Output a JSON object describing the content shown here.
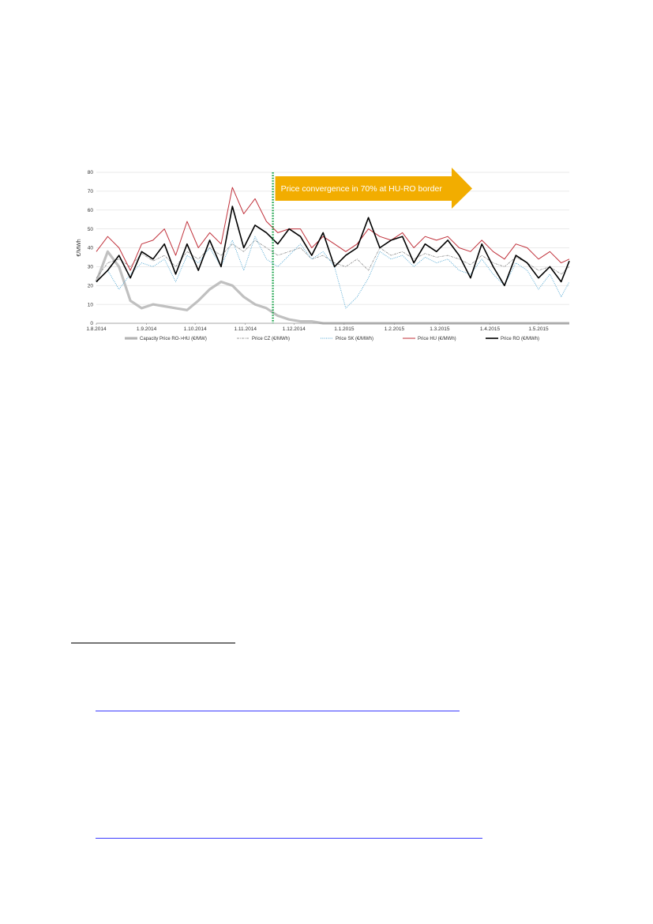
{
  "colors": {
    "capacity": "#b5b5b5",
    "cz": "#7f7f7f",
    "sk": "#4ea6d2",
    "hu": "#c0303a",
    "ro": "#000000",
    "convergence_line": "#1aa34a",
    "banner": "#f2ad00",
    "grid": "#e3e3e3",
    "link": "#3b3bff"
  },
  "annotation": {
    "text": "Price convergence in 70% at HU-RO border",
    "at_date": "2014-11-18"
  },
  "chart_data": {
    "type": "line",
    "title": "",
    "xlabel": "",
    "ylabel": "€/MWh",
    "ylim": [
      0,
      80
    ],
    "yticks": [
      0,
      10,
      20,
      30,
      40,
      50,
      60,
      70,
      80
    ],
    "xlim": [
      "2014-08-01",
      "2015-05-20"
    ],
    "xticks": [
      "1.8.2014",
      "1.9.2014",
      "1.10.2014",
      "1.11.2014",
      "1.12.2014",
      "1.1.2015",
      "1.2.2015",
      "1.3.2015",
      "1.4.2015",
      "1.5.2015"
    ],
    "grid": true,
    "legend_position": "bottom",
    "x": [
      "2014-08-01",
      "2014-08-08",
      "2014-08-15",
      "2014-08-22",
      "2014-08-29",
      "2014-09-05",
      "2014-09-12",
      "2014-09-19",
      "2014-09-26",
      "2014-10-03",
      "2014-10-10",
      "2014-10-17",
      "2014-10-24",
      "2014-10-31",
      "2014-11-07",
      "2014-11-14",
      "2014-11-21",
      "2014-11-28",
      "2014-12-05",
      "2014-12-12",
      "2014-12-19",
      "2014-12-26",
      "2015-01-02",
      "2015-01-09",
      "2015-01-16",
      "2015-01-23",
      "2015-01-30",
      "2015-02-06",
      "2015-02-13",
      "2015-02-20",
      "2015-02-27",
      "2015-03-06",
      "2015-03-13",
      "2015-03-20",
      "2015-03-27",
      "2015-04-03",
      "2015-04-10",
      "2015-04-17",
      "2015-04-24",
      "2015-05-01",
      "2015-05-08",
      "2015-05-15",
      "2015-05-20"
    ],
    "series": [
      {
        "name": "Capacity Price RO->HU (€/MW)",
        "key": "capacity",
        "style": "band",
        "values": [
          22,
          38,
          30,
          12,
          8,
          10,
          9,
          8,
          7,
          12,
          18,
          22,
          20,
          14,
          10,
          8,
          4,
          2,
          1,
          1,
          0,
          0,
          0,
          0,
          0,
          0,
          0,
          0,
          0,
          0,
          0,
          0,
          0,
          0,
          0,
          0,
          0,
          0,
          0,
          0,
          0,
          0,
          0
        ]
      },
      {
        "name": "Price CZ (€/MWh)",
        "key": "cz",
        "style": "dashdot",
        "values": [
          24,
          32,
          34,
          30,
          37,
          33,
          36,
          30,
          38,
          34,
          40,
          36,
          42,
          38,
          44,
          40,
          36,
          38,
          40,
          34,
          36,
          32,
          30,
          34,
          28,
          40,
          36,
          38,
          34,
          37,
          35,
          36,
          34,
          31,
          36,
          32,
          30,
          35,
          32,
          28,
          30,
          26,
          30
        ]
      },
      {
        "name": "Price SK (€/MWh)",
        "key": "sk",
        "style": "dotted",
        "values": [
          22,
          28,
          18,
          26,
          32,
          30,
          34,
          22,
          36,
          32,
          40,
          30,
          44,
          28,
          46,
          34,
          30,
          36,
          42,
          34,
          38,
          30,
          8,
          14,
          24,
          38,
          34,
          36,
          30,
          35,
          32,
          34,
          28,
          26,
          34,
          26,
          20,
          32,
          28,
          18,
          26,
          14,
          22
        ]
      },
      {
        "name": "Price HU (€/MWh)",
        "key": "hu",
        "style": "solid",
        "values": [
          38,
          46,
          40,
          28,
          42,
          44,
          50,
          36,
          54,
          40,
          48,
          42,
          72,
          58,
          66,
          54,
          48,
          50,
          50,
          40,
          46,
          42,
          38,
          42,
          50,
          46,
          44,
          48,
          40,
          46,
          44,
          46,
          40,
          38,
          44,
          38,
          34,
          42,
          40,
          34,
          38,
          32,
          34
        ]
      },
      {
        "name": "Price RO (€/MWh)",
        "key": "ro",
        "style": "bold",
        "values": [
          22,
          28,
          36,
          24,
          38,
          34,
          42,
          26,
          42,
          28,
          44,
          30,
          62,
          40,
          52,
          48,
          42,
          50,
          46,
          36,
          48,
          30,
          36,
          40,
          56,
          40,
          44,
          46,
          32,
          42,
          38,
          44,
          36,
          24,
          42,
          30,
          20,
          36,
          32,
          24,
          30,
          22,
          33
        ]
      }
    ]
  }
}
